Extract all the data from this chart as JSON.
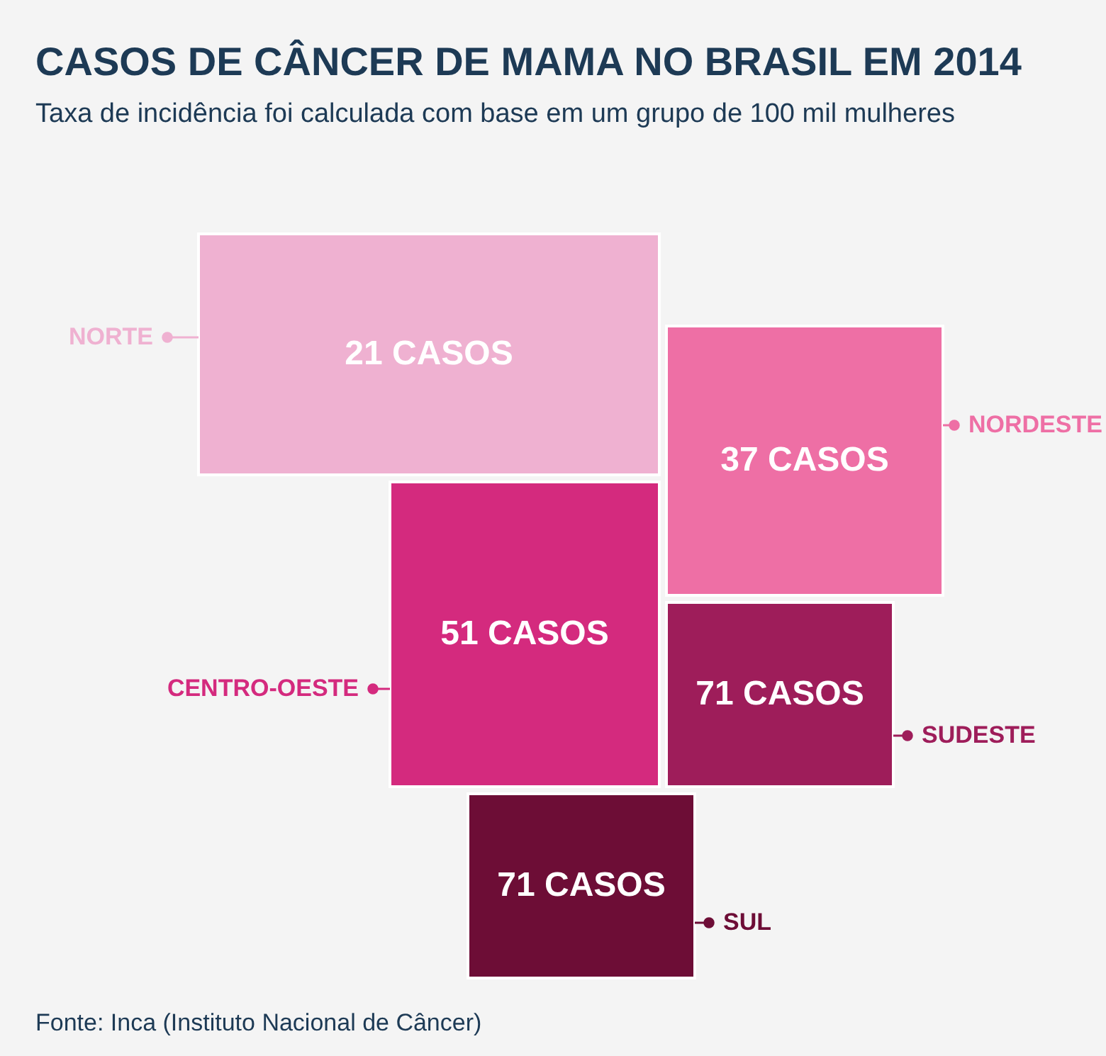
{
  "chart_data": {
    "type": "other",
    "title": "CASOS DE CÂNCER DE MAMA NO BRASIL EM 2014",
    "subtitle": "Taxa de incidência foi calculada com base em um grupo de 100 mil mulheres",
    "categories": [
      "NORTE",
      "NORDESTE",
      "CENTRO-OESTE",
      "SUDESTE",
      "SUL"
    ],
    "values": [
      21,
      37,
      51,
      71,
      71
    ],
    "value_labels": [
      "21 CASOS",
      "37 CASOS",
      "51 CASOS",
      "71 CASOS",
      "71 CASOS"
    ],
    "colors": [
      "#efb1d1",
      "#ee6fa5",
      "#d42a7e",
      "#9e1d5a",
      "#6d0d36"
    ],
    "annotations": [
      "Fonte: Inca (Instituto Nacional de Câncer)"
    ]
  }
}
